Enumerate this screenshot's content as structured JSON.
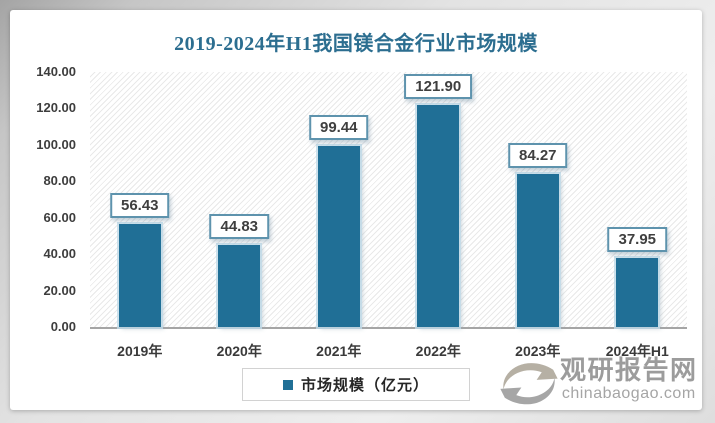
{
  "chart_data": {
    "type": "bar",
    "title": "2019-2024年H1我国镁合金行业市场规模",
    "categories": [
      "2019年",
      "2020年",
      "2021年",
      "2022年",
      "2023年",
      "2024年H1"
    ],
    "values": [
      56.43,
      44.83,
      99.44,
      121.9,
      84.27,
      37.95
    ],
    "value_labels": [
      "56.43",
      "44.83",
      "99.44",
      "121.90",
      "84.27",
      "37.95"
    ],
    "series_name": "市场规模（亿元）",
    "ylim": [
      0,
      140
    ],
    "ytick_step": 20,
    "yticks": [
      "140.00",
      "120.00",
      "100.00",
      "80.00",
      "60.00",
      "40.00",
      "20.00",
      "0.00"
    ],
    "grid": false,
    "legend_position": "bottom",
    "plot_background": "diagonal-hatch"
  },
  "legend": {
    "label": "市场规模（亿元）"
  },
  "watermark": {
    "name": "观研报告网",
    "domain": "chinabaogao.com",
    "logo": "swirl-logo-icon"
  },
  "colors": {
    "bar": "#206F96",
    "bar_edge_glow": "#C1DBE9",
    "title": "#2C6E90",
    "value_box_border": "#5E93AD",
    "value_text": "#3F3F3F",
    "axis_text": "#3D3D3D",
    "axis_line": "#A5A5A5",
    "hatch_line": "#E9E9E9",
    "legend_border": "#D2D2D2",
    "legend_text": "#262626",
    "watermark_text": "#9C9C9C",
    "logo_gray_warm": "#B6B0A4",
    "logo_gray": "#A6A6A6",
    "card_background": "#FFFFFF"
  }
}
